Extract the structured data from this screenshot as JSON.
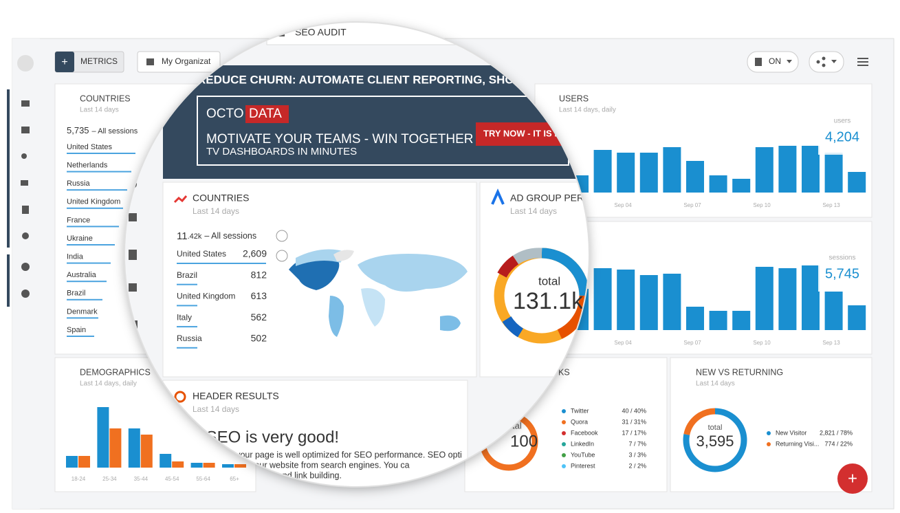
{
  "toolbar": {
    "add": "+",
    "metrics": "METRICS",
    "organization": "My Organizat",
    "tab": "SEO AUDIT",
    "toggle": "ON"
  },
  "countries_small": {
    "title": "COUNTRIES",
    "subtitle": "Last 14 days",
    "total": "5,735",
    "total_label": "– All sessions",
    "items": [
      "United States",
      "Netherlands",
      "Russia",
      "United Kingdom",
      "France",
      "Ukraine",
      "India",
      "Australia",
      "Brazil",
      "Denmark",
      "Spain"
    ]
  },
  "users": {
    "title": "USERS",
    "subtitle": "Last 14 days, daily",
    "label": "users",
    "value": "4,204",
    "color": "#1a8fd0",
    "x_labels": [
      "Sep 04",
      "Sep 07",
      "Sep 10",
      "Sep 13"
    ],
    "ylim": [
      0,
      400
    ],
    "values": [
      100,
      248,
      232,
      232,
      264,
      184,
      100,
      80,
      264,
      272,
      272,
      232,
      120
    ]
  },
  "sessions": {
    "title": "NS",
    "label": "sessions",
    "value": "5,745",
    "color": "#1a8fd0",
    "x_labels": [
      "Sep 04",
      "Sep 07",
      "Sep 10",
      "Sep 13"
    ],
    "ylim": [
      0,
      400
    ],
    "values": [
      240,
      360,
      352,
      320,
      328,
      136,
      112,
      112,
      368,
      360,
      376,
      224,
      144
    ]
  },
  "demographics": {
    "title": "DEMOGRAPHICS",
    "subtitle": "Last 14 days, daily",
    "categories": [
      "18-24",
      "25-34",
      "35-44",
      "45-54",
      "55-64",
      "65+"
    ],
    "ylim": [
      0,
      100
    ],
    "series": [
      {
        "color": "#1a8fd0",
        "values": [
          17,
          88,
          57,
          20,
          7,
          5
        ]
      },
      {
        "color": "#f07020",
        "values": [
          17,
          57,
          48,
          9,
          7,
          5
        ]
      }
    ]
  },
  "banner": {
    "headline": "REDUCE CHURN: AUTOMATE CLIENT REPORTING, SHOWCAS",
    "brand_a": "OCTO",
    "brand_b": "DATA",
    "line1": "MOTIVATE YOUR TEAMS - WIN TOGETHER",
    "line2": "TV DASHBOARDS IN MINUTES",
    "button": "TRY NOW - IT IS FRE"
  },
  "countries": {
    "title": "COUNTRIES",
    "subtitle": "Last 14 days",
    "total_big": "11",
    "total_small": ".42k",
    "total_label": "– All sessions",
    "rows": [
      [
        "United States",
        "2,609"
      ],
      [
        "Brazil",
        "812"
      ],
      [
        "United Kingdom",
        "613"
      ],
      [
        "Italy",
        "562"
      ],
      [
        "Russia",
        "502"
      ]
    ]
  },
  "ad_group": {
    "title": "AD GROUP PERF",
    "subtitle": "Last 14 days",
    "total_label": "total",
    "total": "131.1k"
  },
  "header_results": {
    "title": "HEADER RESULTS",
    "subtitle": "Last 14 days",
    "headline": "r SEO is very good!",
    "lines": [
      "s, your page is well optimized for SEO performance. SEO opti",
      "raffic to your website from search engines. You ca",
      "ntent generation and link building."
    ]
  },
  "networks": {
    "title": "KS",
    "total_label": "tal",
    "total": "100",
    "rows": [
      {
        "name": "Twitter",
        "value": "40 / 40%",
        "color": "#1a8fd0"
      },
      {
        "name": "Quora",
        "value": "31 / 31%",
        "color": "#f07020"
      },
      {
        "name": "Facebook",
        "value": "17 / 17%",
        "color": "#d32f2f"
      },
      {
        "name": "LinkedIn",
        "value": "7 / 7%",
        "color": "#26a69a"
      },
      {
        "name": "YouTube",
        "value": "3 / 3%",
        "color": "#43a047"
      },
      {
        "name": "Pinterest",
        "value": "2 / 2%",
        "color": "#4fc3f7"
      }
    ]
  },
  "new_vs_returning": {
    "title": "NEW VS RETURNING",
    "subtitle": "Last 14 days",
    "total_label": "total",
    "total": "3,595",
    "series": [
      {
        "name": "New Visitor",
        "value_label": "2,821 / 78%",
        "percent": 78,
        "color": "#1a8fd0"
      },
      {
        "name": "Returning Visi...",
        "value_label": "774 / 22%",
        "percent": 22,
        "color": "#f07020"
      }
    ]
  }
}
